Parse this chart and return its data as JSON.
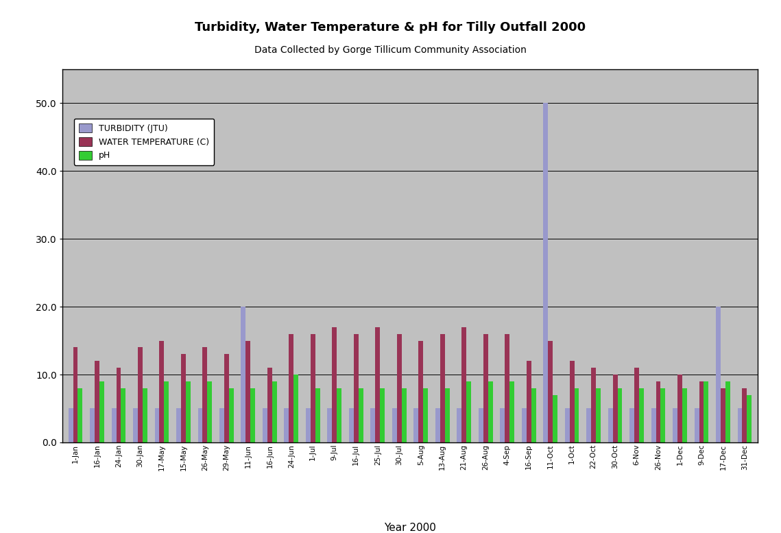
{
  "title": "Turbidity, Water Temperature & pH for Tilly Outfall 2000",
  "subtitle": "Data Collected by Gorge Tillicum Community Association",
  "xlabel": "Year 2000",
  "background_color": "#c0c0c0",
  "ylim": [
    0,
    55
  ],
  "yticks": [
    0.0,
    10.0,
    20.0,
    30.0,
    40.0,
    50.0
  ],
  "bar_width": 0.22,
  "colors": {
    "turbidity": "#9999cc",
    "water_temp": "#993355",
    "ph": "#33cc33"
  },
  "legend_labels": [
    "TURBIDITY (JTU)",
    "WATER TEMPERATURE (C)",
    "pH"
  ],
  "categories": [
    "1-Jan",
    "16-Jan",
    "24-Jan",
    "30-Jan",
    "17-May",
    "15-May",
    "26-May",
    "29-May",
    "11-Jun",
    "16-Jun",
    "24-Jun",
    "1-Jul",
    "9-Jul",
    "16-Jul",
    "25-Jul",
    "30-Jul",
    "5-Aug",
    "13-Aug",
    "21-Aug",
    "26-Aug",
    "4-Sep",
    "16-Sep",
    "11-Oct",
    "1-Oct",
    "22-Oct",
    "30-Oct",
    "6-Nov",
    "26-Nov",
    "1-Dec",
    "9-Dec",
    "17-Dec",
    "31-Dec"
  ],
  "turbidity": [
    5,
    5,
    5,
    5,
    5,
    5,
    5,
    5,
    20,
    5,
    5,
    5,
    5,
    5,
    5,
    5,
    5,
    5,
    5,
    5,
    5,
    5,
    50,
    5,
    5,
    5,
    5,
    5,
    5,
    5,
    20,
    5
  ],
  "water_temp": [
    14,
    12,
    11,
    14,
    15,
    13,
    14,
    13,
    15,
    11,
    16,
    16,
    17,
    16,
    17,
    16,
    15,
    16,
    17,
    16,
    16,
    12,
    15,
    12,
    11,
    10,
    11,
    9,
    10,
    9,
    8,
    8
  ],
  "ph": [
    8,
    9,
    8,
    8,
    9,
    9,
    9,
    8,
    8,
    9,
    10,
    8,
    8,
    8,
    8,
    8,
    8,
    8,
    9,
    9,
    9,
    8,
    7,
    8,
    8,
    8,
    8,
    8,
    8,
    9,
    9,
    7
  ]
}
